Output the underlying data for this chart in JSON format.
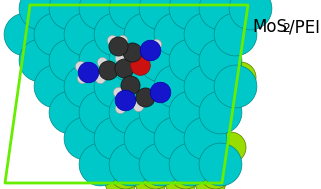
{
  "bg_color": "#ffffff",
  "border_color": "#66ee00",
  "border_lw": 2.0,
  "mo_color": "#00c8c8",
  "mo_edge": "#008888",
  "s_color": "#99dd00",
  "s_edge": "#557700",
  "n_color": "#1515cc",
  "n_edge": "#0000aa",
  "c_color": "#333333",
  "c_edge": "#111111",
  "h_color": "#d8d8d8",
  "h_edge": "#999999",
  "o_color": "#cc1111",
  "o_edge": "#881111",
  "bond_color": "#44aaaa",
  "bond_color2": "#77aa00",
  "figsize": [
    3.21,
    1.89
  ],
  "dpi": 100
}
